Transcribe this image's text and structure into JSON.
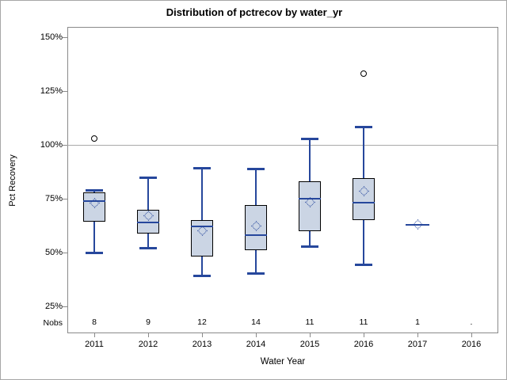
{
  "chart_data": {
    "type": "boxplot",
    "title": "Distribution of pctrecov by water_yr",
    "xlabel": "Water Year",
    "ylabel": "Pct Recovery",
    "nobs_caption": "Nobs",
    "ytick_labels": [
      "150%",
      "125%",
      "100%",
      "75%",
      "50%",
      "25%"
    ],
    "ytick_values": [
      150,
      125,
      100,
      75,
      50,
      25
    ],
    "ylim": [
      12.5,
      155
    ],
    "reference_line_y": 100,
    "grid": false,
    "legend": "none",
    "categories": [
      "2011",
      "2012",
      "2013",
      "2014",
      "2015",
      "2016",
      "2017",
      "2016"
    ],
    "nobs": [
      "8",
      "9",
      "12",
      "14",
      "11",
      "11",
      "1",
      "."
    ],
    "boxes": [
      {
        "year": "2011",
        "min": 49.5,
        "q1": 64.5,
        "median": 74,
        "mean": 73,
        "q3": 78,
        "max": 79,
        "outliers": [
          103
        ]
      },
      {
        "year": "2012",
        "min": 52,
        "q1": 59,
        "median": 64,
        "mean": 67,
        "q3": 70,
        "max": 85,
        "outliers": []
      },
      {
        "year": "2013",
        "min": 39,
        "q1": 48,
        "median": 62,
        "mean": 60,
        "q3": 65,
        "max": 89.5,
        "outliers": []
      },
      {
        "year": "2014",
        "min": 40,
        "q1": 51,
        "median": 58,
        "mean": 62.5,
        "q3": 72,
        "max": 89,
        "outliers": []
      },
      {
        "year": "2015",
        "min": 52.5,
        "q1": 60,
        "median": 75,
        "mean": 73.5,
        "q3": 83,
        "max": 103,
        "outliers": []
      },
      {
        "year": "2016",
        "min": 44,
        "q1": 65,
        "median": 73,
        "mean": 78.5,
        "q3": 84.5,
        "max": 108.5,
        "outliers": [
          133
        ]
      },
      {
        "year": "2017",
        "min": null,
        "q1": null,
        "median": 63,
        "mean": 63,
        "q3": null,
        "max": null,
        "outliers": []
      },
      {
        "year": "2016",
        "min": null,
        "q1": null,
        "median": null,
        "mean": null,
        "q3": null,
        "max": null,
        "outliers": []
      }
    ],
    "colors": {
      "accent": "#26479C",
      "box_fill": "#CBD5E4",
      "box_border": "#000000",
      "outlier": "#000000",
      "reference": "#A9A9A9",
      "frame": "#8A8A8A",
      "text": "#000000"
    }
  }
}
